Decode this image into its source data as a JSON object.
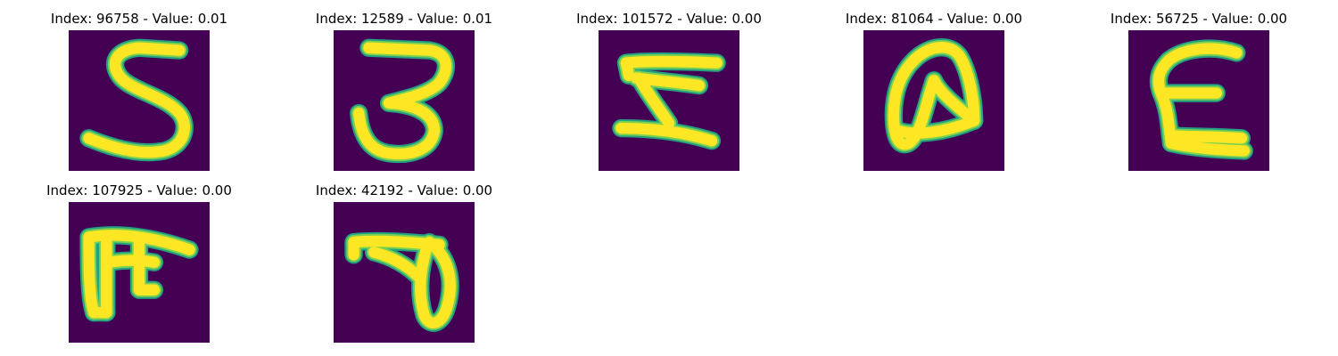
{
  "colors": {
    "background": "#440154",
    "edge": "#22a884",
    "mid": "#7ad151",
    "core": "#fde725"
  },
  "panels": [
    {
      "title": "Index: 96758 - Value: 0.01",
      "glyph": "s-shape"
    },
    {
      "title": "Index: 12589 - Value: 0.01",
      "glyph": "three-shape"
    },
    {
      "title": "Index: 101572 - Value: 0.00",
      "glyph": "z-shape"
    },
    {
      "title": "Index: 81064 - Value: 0.00",
      "glyph": "loop-shape"
    },
    {
      "title": "Index: 56725 - Value: 0.00",
      "glyph": "e-shape"
    },
    {
      "title": "Index: 107925 - Value: 0.00",
      "glyph": "f-shape"
    },
    {
      "title": "Index: 42192 - Value: 0.00",
      "glyph": "p-shape"
    }
  ]
}
